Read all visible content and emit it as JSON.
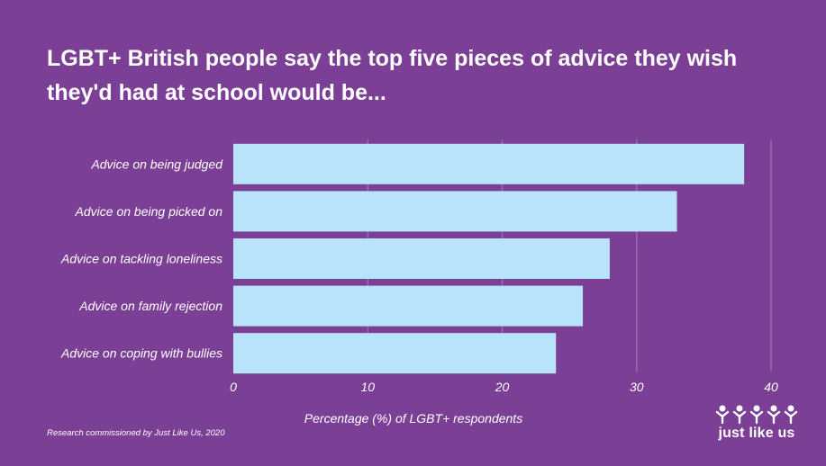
{
  "title": "LGBT+ British people say the top five pieces of advice they wish they'd had at school would be...",
  "source": "Research commissioned by Just Like Us, 2020",
  "logo_text": "just like us",
  "colors": {
    "background": "#7b3f95",
    "bar": "#b8e3fa",
    "grid": "#9a6ab0",
    "text": "#ffffff"
  },
  "chart_data": {
    "type": "bar",
    "orientation": "horizontal",
    "title": "LGBT+ British people say the top five pieces of advice they wish they'd had at school would be...",
    "xlabel": "Percentage (%) of LGBT+ respondents",
    "ylabel": "",
    "categories": [
      "Advice on being judged",
      "Advice on being picked on",
      "Advice on tackling loneliness",
      "Advice on family rejection",
      "Advice on coping with bullies"
    ],
    "values": [
      38,
      33,
      28,
      26,
      24
    ],
    "xlim": [
      0,
      40
    ],
    "ticks": [
      0,
      10,
      20,
      30,
      40
    ],
    "grid": true
  }
}
